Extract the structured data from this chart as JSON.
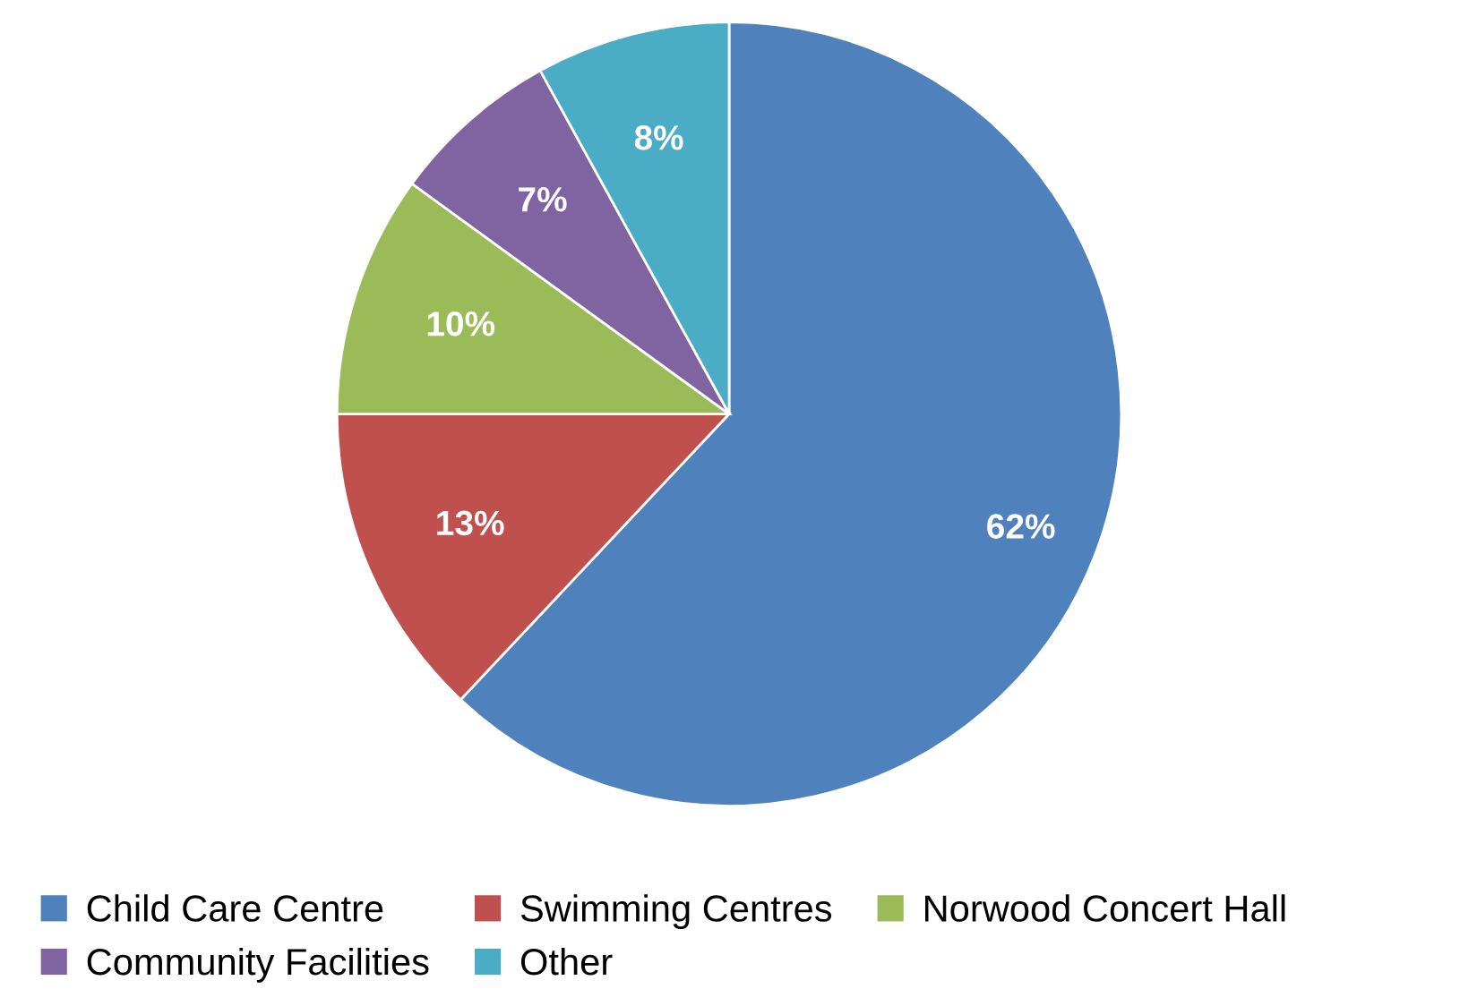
{
  "chart_data": {
    "type": "pie",
    "categories": [
      "Child Care Centre",
      "Swimming Centres",
      "Norwood Concert Hall",
      "Community Facilities",
      "Other"
    ],
    "values": [
      62,
      13,
      10,
      7,
      8
    ],
    "colors": [
      "#4f81bd",
      "#c0504d",
      "#9bbb59",
      "#8064a2",
      "#4bacc6"
    ],
    "value_labels": [
      "62%",
      "13%",
      "10%",
      "7%",
      "8%"
    ],
    "legend": "bottom"
  }
}
